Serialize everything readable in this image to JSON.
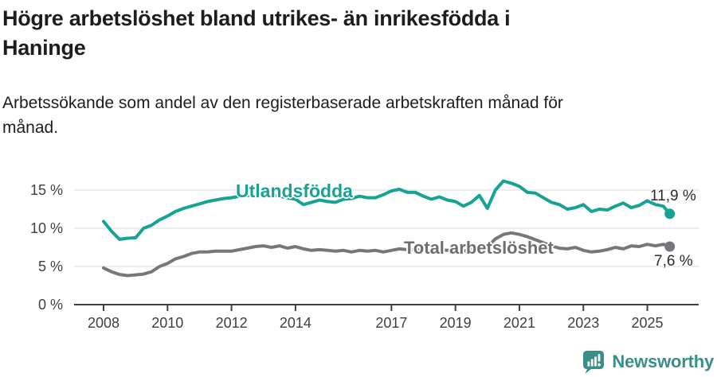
{
  "header": {
    "title": "Högre arbetslöshet bland utrikes- än inrikesfödda i\nHaninge",
    "subtitle": "Arbetssökande som andel av den registerbaserade arbetskraften månad för\nmånad."
  },
  "footer": {
    "brand": "Newsworthy",
    "brand_color": "#3a8e8a",
    "logo_icon": "bar-chart-speech-bubble"
  },
  "chart_data": {
    "type": "line",
    "unit": "%",
    "grid": "horizontal",
    "xlim": [
      2007.1,
      2026.6
    ],
    "ylim": [
      0,
      17
    ],
    "xticks": [
      {
        "value": 2008,
        "label": "2008"
      },
      {
        "value": 2010,
        "label": "2010"
      },
      {
        "value": 2012,
        "label": "2012"
      },
      {
        "value": 2014,
        "label": "2014"
      },
      {
        "value": 2017,
        "label": "2017"
      },
      {
        "value": 2019,
        "label": "2019"
      },
      {
        "value": 2021,
        "label": "2021"
      },
      {
        "value": 2023,
        "label": "2023"
      },
      {
        "value": 2025,
        "label": "2025"
      }
    ],
    "yticks": [
      {
        "value": 0,
        "label": "0 %"
      },
      {
        "value": 5,
        "label": "5 %"
      },
      {
        "value": 10,
        "label": "10 %"
      },
      {
        "value": 15,
        "label": "15 %"
      }
    ],
    "x": [
      2008,
      2008.25,
      2008.5,
      2008.75,
      2009,
      2009.25,
      2009.5,
      2009.75,
      2010,
      2010.25,
      2010.5,
      2010.75,
      2011,
      2011.25,
      2011.5,
      2011.75,
      2012,
      2012.25,
      2012.5,
      2012.75,
      2013,
      2013.25,
      2013.5,
      2013.75,
      2014,
      2014.25,
      2014.5,
      2014.75,
      2015,
      2015.25,
      2015.5,
      2015.75,
      2016,
      2016.25,
      2016.5,
      2016.75,
      2017,
      2017.25,
      2017.5,
      2017.75,
      2018,
      2018.25,
      2018.5,
      2018.75,
      2019,
      2019.25,
      2019.5,
      2019.75,
      2020,
      2020.25,
      2020.5,
      2020.75,
      2021,
      2021.25,
      2021.5,
      2021.75,
      2022,
      2022.25,
      2022.5,
      2022.75,
      2023,
      2023.25,
      2023.5,
      2023.75,
      2024,
      2024.25,
      2024.5,
      2024.75,
      2025,
      2025.25,
      2025.5,
      2025.7
    ],
    "series": [
      {
        "id": "utlandsfodda",
        "name": "Utlandsfödda",
        "color": "#17a296",
        "end_label": "11,9 %",
        "last_value": 11.9,
        "values": [
          10.9,
          9.6,
          8.55,
          8.7,
          8.75,
          10.0,
          10.4,
          11.1,
          11.6,
          12.2,
          12.6,
          12.9,
          13.2,
          13.5,
          13.7,
          13.9,
          14.0,
          14.2,
          14.3,
          14.4,
          14.5,
          14.4,
          14.2,
          14.0,
          13.8,
          13.1,
          13.4,
          13.7,
          13.5,
          13.4,
          13.8,
          13.9,
          14.2,
          14.0,
          14.0,
          14.4,
          14.9,
          15.1,
          14.7,
          14.7,
          14.2,
          13.8,
          14.1,
          13.7,
          13.5,
          12.9,
          13.4,
          14.3,
          12.6,
          15.0,
          16.2,
          15.9,
          15.5,
          14.7,
          14.6,
          14.0,
          13.4,
          13.1,
          12.5,
          12.7,
          13.1,
          12.2,
          12.5,
          12.4,
          12.9,
          13.3,
          12.7,
          13.0,
          13.6,
          13.1,
          12.9,
          11.9
        ]
      },
      {
        "id": "total",
        "name": "Total arbetslöshet",
        "color": "#77777b",
        "end_label": "7,6 %",
        "last_value": 7.6,
        "values": [
          4.8,
          4.3,
          3.95,
          3.8,
          3.9,
          4.0,
          4.3,
          5.0,
          5.4,
          6.0,
          6.3,
          6.7,
          6.9,
          6.9,
          7.0,
          7.0,
          7.0,
          7.2,
          7.4,
          7.6,
          7.7,
          7.5,
          7.7,
          7.4,
          7.6,
          7.3,
          7.1,
          7.2,
          7.1,
          7.0,
          7.1,
          6.9,
          7.1,
          7.0,
          7.1,
          6.9,
          7.1,
          7.3,
          7.2,
          7.2,
          7.1,
          7.1,
          7.2,
          7.1,
          7.1,
          7.0,
          7.2,
          7.4,
          7.6,
          8.6,
          9.2,
          9.4,
          9.2,
          8.9,
          8.5,
          8.1,
          7.7,
          7.4,
          7.3,
          7.5,
          7.1,
          6.9,
          7.0,
          7.2,
          7.5,
          7.3,
          7.7,
          7.6,
          7.9,
          7.7,
          7.9,
          7.6
        ]
      }
    ]
  }
}
